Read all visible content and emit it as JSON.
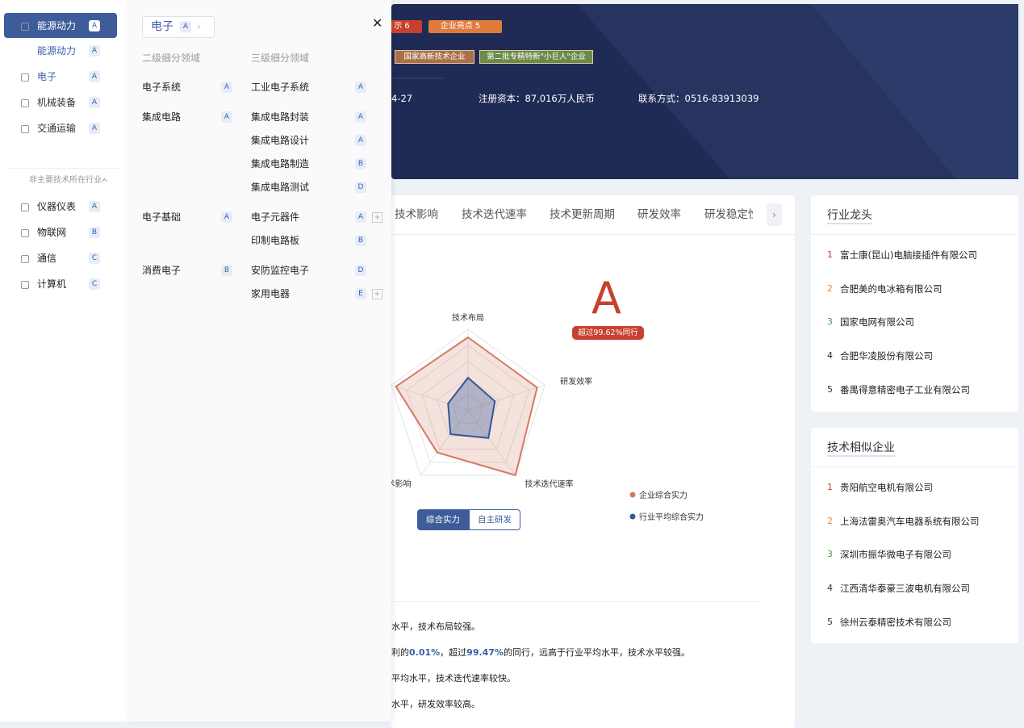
{
  "sidebar": {
    "primary": [
      {
        "label": "能源动力",
        "grade": "A",
        "children": [
          {
            "label": "能源动力",
            "grade": "A"
          }
        ]
      },
      {
        "label": "电子",
        "grade": "A"
      },
      {
        "label": "机械装备",
        "grade": "A"
      },
      {
        "label": "交通运输",
        "grade": "A"
      }
    ],
    "secondary_title": "非主要技术所在行业",
    "secondary": [
      {
        "label": "仪器仪表",
        "grade": "A"
      },
      {
        "label": "物联网",
        "grade": "B"
      },
      {
        "label": "通信",
        "grade": "C"
      },
      {
        "label": "计算机",
        "grade": "C"
      }
    ]
  },
  "overlay": {
    "breadcrumb": {
      "label": "电子",
      "grade": "A"
    },
    "headers": [
      "二级细分领域",
      "三级细分领域"
    ],
    "groups": [
      {
        "label": "电子系统",
        "grade": "A",
        "children": [
          {
            "label": "工业电子系统",
            "grade": "A"
          }
        ]
      },
      {
        "label": "集成电路",
        "grade": "A",
        "children": [
          {
            "label": "集成电路封装",
            "grade": "A"
          },
          {
            "label": "集成电路设计",
            "grade": "A"
          },
          {
            "label": "集成电路制造",
            "grade": "B"
          },
          {
            "label": "集成电路测试",
            "grade": "D"
          }
        ]
      },
      {
        "label": "电子基础",
        "grade": "A",
        "children": [
          {
            "label": "电子元器件",
            "grade": "A",
            "expandable": true
          },
          {
            "label": "印制电路板",
            "grade": "B"
          }
        ]
      },
      {
        "label": "消费电子",
        "grade": "B",
        "children": [
          {
            "label": "安防监控电子",
            "grade": "D"
          },
          {
            "label": "家用电器",
            "grade": "E",
            "expandable": true
          }
        ]
      }
    ]
  },
  "header": {
    "tags": [
      "示 6",
      "企业亮点 5"
    ],
    "badges": [
      "国家高新技术企业",
      "第二批专精特新\"小巨人\"企业"
    ],
    "info": [
      "4-27",
      "注册资本：87,016万人民币",
      "联系方式：0516-83913039"
    ]
  },
  "tabs": [
    "技术影响",
    "技术迭代速率",
    "技术更新周期",
    "研发效率",
    "研发稳定性"
  ],
  "score": {
    "grade": "A",
    "badge": "超过99.62%同行"
  },
  "chart_data": {
    "type": "radar",
    "axes": [
      "技术布局",
      "研发效率",
      "技术迭代速率",
      "技术影响",
      null
    ],
    "rlim": [
      0,
      100
    ],
    "series": [
      {
        "name": "企业综合实力",
        "color": "#d47a62",
        "values": [
          90,
          90,
          100,
          65,
          94
        ]
      },
      {
        "name": "行业平均综合实力",
        "color": "#34589a",
        "values": [
          40,
          35,
          43,
          37,
          26
        ]
      }
    ]
  },
  "toggle": [
    "综合实力",
    "自主研发"
  ],
  "summary": [
    [
      "水平，技术布局较强。"
    ],
    [
      "利的",
      "0.01%",
      "，超过",
      "99.47%",
      "的同行，远高于行业平均水平，技术水平较强。"
    ],
    [
      "平均水平，技术迭代速率较快。"
    ],
    [
      "水平，研发效率较高。"
    ]
  ],
  "panels": [
    {
      "title": "行业龙头",
      "items": [
        {
          "rank": 1,
          "name": "富士康(昆山)电脑接插件有限公司"
        },
        {
          "rank": 2,
          "name": "合肥美的电冰箱有限公司"
        },
        {
          "rank": 3,
          "name": "国家电网有限公司"
        },
        {
          "rank": 4,
          "name": "合肥华凌股份有限公司"
        },
        {
          "rank": 5,
          "name": "番禺得意精密电子工业有限公司"
        }
      ]
    },
    {
      "title": "技术相似企业",
      "items": [
        {
          "rank": 1,
          "name": "贵阳航空电机有限公司"
        },
        {
          "rank": 2,
          "name": "上海法雷奥汽车电器系统有限公司"
        },
        {
          "rank": 3,
          "name": "深圳市振华微电子有限公司"
        },
        {
          "rank": 4,
          "name": "江西清华泰豪三波电机有限公司"
        },
        {
          "rank": 5,
          "name": "徐州云泰精密技术有限公司"
        }
      ]
    }
  ]
}
